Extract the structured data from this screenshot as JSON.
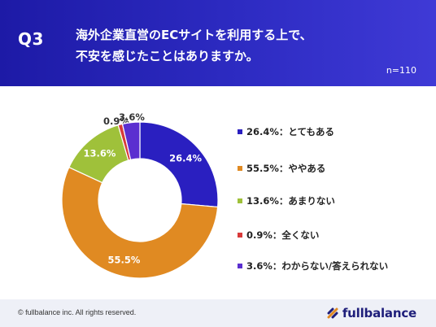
{
  "header": {
    "question_label": "Q3",
    "question_text_line1": "海外企業直営のECサイトを利用する上で、",
    "question_text_line2": "不安を感じたことはありますか。",
    "sample_size": "n=110"
  },
  "chart_data": {
    "type": "pie",
    "donut": true,
    "categories": [
      "とてもある",
      "ややある",
      "あまりない",
      "全くない",
      "わからない/答えられない"
    ],
    "values": [
      26.4,
      55.5,
      13.6,
      0.9,
      3.6
    ],
    "labels": [
      "26.4%",
      "55.5%",
      "13.6%",
      "0.9%",
      "3.6%"
    ],
    "legend": [
      "26.4%：とてもある",
      "55.5%：ややある",
      "13.6%：あまりない",
      "0.9%：全くない",
      "3.6%：わからない/答えられない"
    ],
    "colors": [
      "#2a1fc0",
      "#e08a22",
      "#9fc13a",
      "#d83a3a",
      "#5b2fd0"
    ],
    "legend_placement": "right"
  },
  "footer": {
    "copyright": "© fullbalance inc. All rights reserved.",
    "brand": "fullbalance",
    "brand_color": "#1e1e7a"
  }
}
